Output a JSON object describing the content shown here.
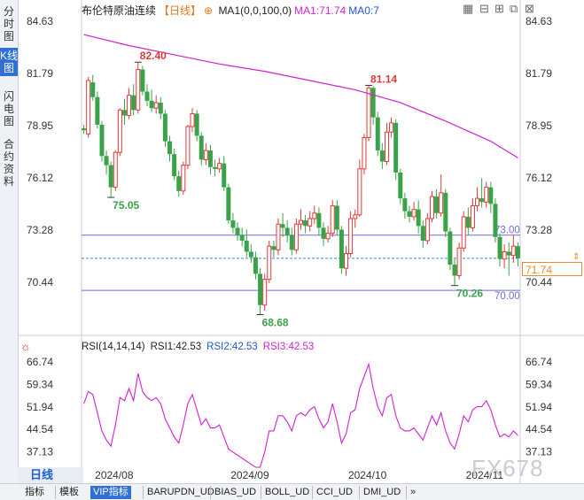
{
  "sidebar": {
    "tabs": [
      "分时图",
      "K线图",
      "闪电图",
      "合约资料"
    ],
    "active": 1
  },
  "header": {
    "title": "布伦特原油连续",
    "period_tag": "【日线】",
    "ma1_label": "MA1(0,0,100,0)",
    "ma1_value": "MA1:71.74",
    "ma2_value": "MA0:7"
  },
  "toolbar_icons": [
    "grid-icon",
    "minus-icon",
    "plus-icon",
    "expand-icon",
    "close-icon"
  ],
  "rsi_header": {
    "icon": "settings-icon",
    "name": "RSI(14,14,14)",
    "rsi1": "RSI1:42.53",
    "rsi2": "RSI2:42.53",
    "rsi3": "RSI3:42.53"
  },
  "period_label": "日线",
  "watermark": "FX678",
  "current_price": "71.74",
  "footer_tabs": [
    "指标",
    "模板",
    "VIP指标",
    "BARUPDN_UD",
    "BIAS_UD",
    "BOLL_UD",
    "CCI_UD",
    "DMI_UD",
    "»"
  ],
  "colors": {
    "up": "#e03a3a",
    "down": "#3aa34a",
    "ma": "#d020d0",
    "rsi": "#d020d0",
    "hline": "#6b6bd9",
    "price": "#f08a28",
    "accent": "#2f6fd6"
  },
  "chart_data": [
    {
      "type": "candlestick",
      "y_ticks": [
        84.63,
        81.79,
        78.95,
        76.12,
        73.28,
        70.44
      ],
      "ylim": [
        67.6,
        85.2
      ],
      "x_labels": [
        "2024/08",
        "2024/09",
        "2024/10",
        "2024/11"
      ],
      "x_label_index": [
        6,
        36,
        62,
        88
      ],
      "annotations": [
        {
          "text": "82.40",
          "index": 12,
          "value": 82.4,
          "color": "#e03a3a"
        },
        {
          "text": "75.05",
          "index": 6,
          "value": 75.05,
          "color": "#3aa34a"
        },
        {
          "text": "68.68",
          "index": 39,
          "value": 68.68,
          "color": "#3aa34a"
        },
        {
          "text": "81.14",
          "index": 63,
          "value": 81.14,
          "color": "#e03a3a"
        },
        {
          "text": "70.26",
          "index": 82,
          "value": 70.26,
          "color": "#3aa34a"
        }
      ],
      "hlines": [
        {
          "value": 73.0,
          "label": "73.00"
        },
        {
          "value": 70.0,
          "label": "70.00"
        }
      ],
      "last_price": 71.74,
      "ma": [
        [
          0,
          83.9
        ],
        [
          10,
          83.3
        ],
        [
          20,
          82.8
        ],
        [
          30,
          82.3
        ],
        [
          40,
          81.9
        ],
        [
          50,
          81.4
        ],
        [
          60,
          80.9
        ],
        [
          70,
          80.2
        ],
        [
          80,
          79.2
        ],
        [
          90,
          78.1
        ],
        [
          96,
          77.2
        ]
      ],
      "candles": [
        [
          78.8,
          78.7,
          79.0,
          78.5
        ],
        [
          78.5,
          81.4,
          81.6,
          78.3
        ],
        [
          81.3,
          80.5,
          81.7,
          80.3
        ],
        [
          80.5,
          79.0,
          80.8,
          78.8
        ],
        [
          79.0,
          77.3,
          79.2,
          77.0
        ],
        [
          77.3,
          76.8,
          77.6,
          76.3
        ],
        [
          76.8,
          75.6,
          77.0,
          75.05
        ],
        [
          75.6,
          77.5,
          77.6,
          75.4
        ],
        [
          77.5,
          79.8,
          79.9,
          77.3
        ],
        [
          79.8,
          79.5,
          80.4,
          79.0
        ],
        [
          79.5,
          80.6,
          81.0,
          79.3
        ],
        [
          80.6,
          79.8,
          81.2,
          79.5
        ],
        [
          79.8,
          82.0,
          82.4,
          79.6
        ],
        [
          82.0,
          80.8,
          82.2,
          80.6
        ],
        [
          80.8,
          80.3,
          81.2,
          80.0
        ],
        [
          80.3,
          79.9,
          80.9,
          79.7
        ],
        [
          79.9,
          80.2,
          80.6,
          79.6
        ],
        [
          80.2,
          79.6,
          80.5,
          79.3
        ],
        [
          79.6,
          78.1,
          79.8,
          77.8
        ],
        [
          78.1,
          77.4,
          78.4,
          77.0
        ],
        [
          77.4,
          76.2,
          77.7,
          76.0
        ],
        [
          76.2,
          75.4,
          76.5,
          75.1
        ],
        [
          75.4,
          76.8,
          77.0,
          75.2
        ],
        [
          76.8,
          78.9,
          79.0,
          76.6
        ],
        [
          78.9,
          79.6,
          79.9,
          78.6
        ],
        [
          79.6,
          78.4,
          79.8,
          78.1
        ],
        [
          78.4,
          77.1,
          78.6,
          76.8
        ],
        [
          77.1,
          77.6,
          78.0,
          76.8
        ],
        [
          77.6,
          76.7,
          77.9,
          76.3
        ],
        [
          76.7,
          76.6,
          77.1,
          76.2
        ],
        [
          76.6,
          76.9,
          77.2,
          76.4
        ],
        [
          76.9,
          75.6,
          77.3,
          75.4
        ],
        [
          75.6,
          73.8,
          75.8,
          73.6
        ],
        [
          73.8,
          73.4,
          74.2,
          73.1
        ],
        [
          73.4,
          73.0,
          73.7,
          72.7
        ],
        [
          73.0,
          72.7,
          73.4,
          72.4
        ],
        [
          72.7,
          72.1,
          73.3,
          71.8
        ],
        [
          72.1,
          71.8,
          72.5,
          71.5
        ],
        [
          71.8,
          70.9,
          72.1,
          70.6
        ],
        [
          70.9,
          69.2,
          71.2,
          68.68
        ],
        [
          69.2,
          70.6,
          70.9,
          68.9
        ],
        [
          70.6,
          72.4,
          72.7,
          70.4
        ],
        [
          72.4,
          72.2,
          72.7,
          71.8
        ],
        [
          72.2,
          73.6,
          73.9,
          71.9
        ],
        [
          73.6,
          73.4,
          74.2,
          72.9
        ],
        [
          73.4,
          73.0,
          73.8,
          72.6
        ],
        [
          73.0,
          72.2,
          73.4,
          71.9
        ],
        [
          72.2,
          73.6,
          73.9,
          72.0
        ],
        [
          73.6,
          73.8,
          74.4,
          73.3
        ],
        [
          73.8,
          73.5,
          74.1,
          73.1
        ],
        [
          73.5,
          73.9,
          74.3,
          73.2
        ],
        [
          73.9,
          74.2,
          74.6,
          73.6
        ],
        [
          74.2,
          73.4,
          74.5,
          73.0
        ],
        [
          73.4,
          72.8,
          73.7,
          72.4
        ],
        [
          72.8,
          73.1,
          73.5,
          72.6
        ],
        [
          73.1,
          74.6,
          74.9,
          72.9
        ],
        [
          74.6,
          73.3,
          74.9,
          73.0
        ],
        [
          73.3,
          71.2,
          73.5,
          70.9
        ],
        [
          71.2,
          72.0,
          72.4,
          70.8
        ],
        [
          72.0,
          73.9,
          74.3,
          71.8
        ],
        [
          73.9,
          74.1,
          74.4,
          73.4
        ],
        [
          74.1,
          76.6,
          77.1,
          74.0
        ],
        [
          76.6,
          78.3,
          78.5,
          76.3
        ],
        [
          78.3,
          81.0,
          81.14,
          78.1
        ],
        [
          81.0,
          79.4,
          81.1,
          79.0
        ],
        [
          79.4,
          77.6,
          79.7,
          77.3
        ],
        [
          77.6,
          77.0,
          78.0,
          76.6
        ],
        [
          77.0,
          78.6,
          79.1,
          76.8
        ],
        [
          78.6,
          79.1,
          79.4,
          78.3
        ],
        [
          79.1,
          76.4,
          79.3,
          76.0
        ],
        [
          76.4,
          75.0,
          76.6,
          74.7
        ],
        [
          75.0,
          74.3,
          75.3,
          73.9
        ],
        [
          74.3,
          74.0,
          74.6,
          73.7
        ],
        [
          74.0,
          74.4,
          74.8,
          73.8
        ],
        [
          74.4,
          73.5,
          74.9,
          73.1
        ],
        [
          73.5,
          72.7,
          73.8,
          72.3
        ],
        [
          72.7,
          73.9,
          74.2,
          72.5
        ],
        [
          73.9,
          75.1,
          75.4,
          73.7
        ],
        [
          75.1,
          74.2,
          75.5,
          73.9
        ],
        [
          74.2,
          75.3,
          76.3,
          74.0
        ],
        [
          75.3,
          73.2,
          75.5,
          72.9
        ],
        [
          73.2,
          71.4,
          73.4,
          71.1
        ],
        [
          71.4,
          70.8,
          71.7,
          70.26
        ],
        [
          70.8,
          72.3,
          72.6,
          70.6
        ],
        [
          72.3,
          74.0,
          74.3,
          72.1
        ],
        [
          74.0,
          73.4,
          74.5,
          73.0
        ],
        [
          73.4,
          74.6,
          75.0,
          73.2
        ],
        [
          74.6,
          75.0,
          75.6,
          74.3
        ],
        [
          75.0,
          74.8,
          76.1,
          74.5
        ],
        [
          74.8,
          75.6,
          75.9,
          74.5
        ],
        [
          75.6,
          74.7,
          75.9,
          74.2
        ],
        [
          74.7,
          72.9,
          75.0,
          72.6
        ],
        [
          72.9,
          71.7,
          73.1,
          71.3
        ],
        [
          71.7,
          72.1,
          72.5,
          71.2
        ],
        [
          72.1,
          71.9,
          72.6,
          70.8
        ],
        [
          71.9,
          72.4,
          73.0,
          71.5
        ],
        [
          72.4,
          71.74,
          72.6,
          71.3
        ]
      ]
    },
    {
      "type": "line",
      "title": "RSI(14,14,14)",
      "y_ticks": [
        66.74,
        59.34,
        51.94,
        44.54,
        37.13
      ],
      "ylim": [
        32.0,
        70.0
      ],
      "series": [
        {
          "name": "RSI1",
          "values": [
            53,
            57,
            56,
            50,
            44,
            41,
            39,
            46,
            55,
            54,
            58,
            54,
            63,
            57,
            55,
            54,
            55,
            53,
            48,
            45,
            42,
            40,
            46,
            53,
            56,
            51,
            46,
            48,
            45,
            45,
            46,
            42,
            38,
            37,
            36,
            35,
            34,
            33,
            32,
            32,
            37,
            44,
            44,
            49,
            49,
            47,
            44,
            49,
            50,
            49,
            51,
            52,
            48,
            45,
            47,
            53,
            47,
            40,
            43,
            50,
            51,
            58,
            62,
            66,
            58,
            52,
            49,
            55,
            56,
            49,
            45,
            44,
            44,
            45,
            43,
            41,
            45,
            49,
            46,
            50,
            44,
            40,
            38,
            43,
            49,
            47,
            51,
            52,
            52,
            54,
            51,
            46,
            42,
            43,
            42,
            44,
            42.53
          ]
        }
      ]
    }
  ]
}
